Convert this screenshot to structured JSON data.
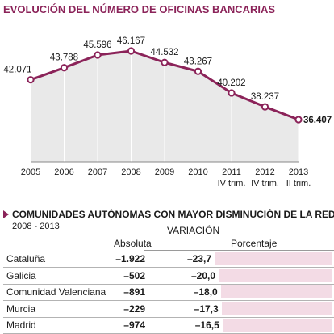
{
  "chart_data": [
    {
      "type": "line",
      "title": "EVOLUCIÓN DEL NÚMERO DE OFICINAS BANCARIAS",
      "x_labels": [
        [
          "2005"
        ],
        [
          "2006"
        ],
        [
          "2007"
        ],
        [
          "2008"
        ],
        [
          "2009"
        ],
        [
          "2010"
        ],
        [
          "2011",
          "IV trim."
        ],
        [
          "2012",
          "IV trim."
        ],
        [
          "2013",
          "II trim."
        ]
      ],
      "values": [
        42071,
        43788,
        45596,
        46167,
        44532,
        43267,
        40202,
        38237,
        36407
      ],
      "value_labels": [
        "42.071",
        "43.788",
        "45.596",
        "46.167",
        "44.532",
        "43.267",
        "40.202",
        "38.237",
        "36.407"
      ],
      "colors": {
        "line": "#8b2359",
        "fill": "#e9e9e9",
        "point_fill": "#ffffff"
      }
    },
    {
      "type": "bar",
      "title": "COMUNIDADES AUTÓNOMAS CON MAYOR DISMINUCIÓN DE LA RED",
      "subtitle": "2008 - 2013",
      "group_header": "VARIACIÓN",
      "col_absoluta": "Absoluta",
      "col_porcentaje": "Porcentaje",
      "rows": [
        {
          "name": "Cataluña",
          "absoluta": "–1.922",
          "porcentaje": "–23,7",
          "pct_value": -23.7
        },
        {
          "name": "Galicia",
          "absoluta": "–502",
          "porcentaje": "–20,0",
          "pct_value": -20.0
        },
        {
          "name": "Comunidad Valenciana",
          "absoluta": "–891",
          "porcentaje": "–18,0",
          "pct_value": -18.0
        },
        {
          "name": "Murcia",
          "absoluta": "–229",
          "porcentaje": "–17,3",
          "pct_value": -17.3
        },
        {
          "name": "Madrid",
          "absoluta": "–974",
          "porcentaje": "–16,5",
          "pct_value": -16.5
        }
      ],
      "colors": {
        "bar": "#f3dbe5",
        "marker": "#8b2359"
      }
    }
  ]
}
